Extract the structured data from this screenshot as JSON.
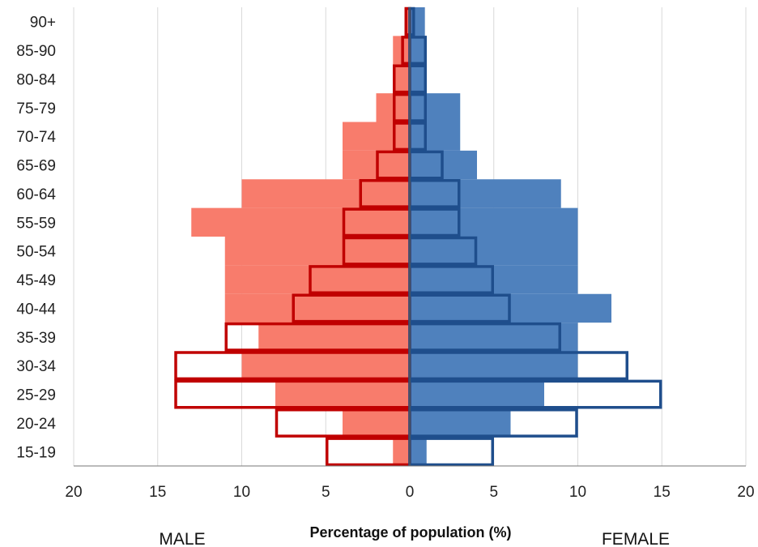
{
  "chart_data": {
    "type": "bar",
    "orientation": "horizontal",
    "subtype": "population-pyramid",
    "categories": [
      "15-19",
      "20-24",
      "25-29",
      "30-34",
      "35-39",
      "40-44",
      "45-49",
      "50-54",
      "55-59",
      "60-64",
      "65-69",
      "70-74",
      "75-79",
      "80-84",
      "85-90",
      "90+"
    ],
    "series": [
      {
        "side": "male",
        "style": "filled",
        "color": "#f87c6c",
        "values": [
          1,
          4,
          8,
          10,
          9,
          11,
          11,
          11,
          13,
          10,
          4,
          4,
          2,
          1,
          1,
          0.3
        ]
      },
      {
        "side": "female",
        "style": "filled",
        "color": "#4f81bd",
        "values": [
          1,
          6,
          8,
          10,
          10,
          12,
          10,
          10,
          10,
          9,
          4,
          3,
          3,
          1,
          1,
          0.9
        ]
      },
      {
        "side": "male",
        "style": "outline",
        "color": "#c00000",
        "values": [
          5,
          8,
          14,
          14,
          11,
          7,
          6,
          4,
          4,
          3,
          2,
          1,
          1,
          1,
          0.5,
          0.3
        ]
      },
      {
        "side": "female",
        "style": "outline",
        "color": "#1f4e8c",
        "values": [
          5,
          10,
          15,
          13,
          9,
          6,
          5,
          4,
          3,
          3,
          2,
          1,
          1,
          1,
          1,
          0.3
        ]
      }
    ],
    "xlabel": "Percentage of population  (%)",
    "left_label": "MALE",
    "right_label": "FEMALE",
    "xticks": [
      "20",
      "15",
      "10",
      "5",
      "0",
      "5",
      "10",
      "15",
      "20"
    ],
    "xlim": [
      -20,
      20
    ],
    "grid": "vertical"
  }
}
